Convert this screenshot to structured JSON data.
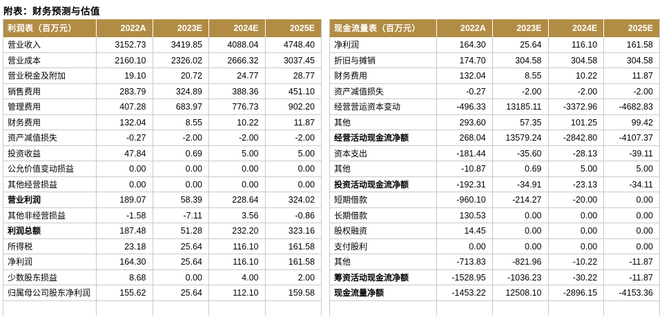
{
  "page_title": "附表：财务预测与估值",
  "colors": {
    "header_bg": "#B18C44",
    "header_text": "#FFFFFF",
    "grid": "#C8C8C8"
  },
  "columns": [
    "2022A",
    "2023E",
    "2024E",
    "2025E"
  ],
  "income_statement": {
    "title": "利润表（百万元）",
    "rows": [
      {
        "label": "营业收入",
        "bold": false,
        "values": [
          "3152.73",
          "3419.85",
          "4088.04",
          "4748.40"
        ]
      },
      {
        "label": "营业成本",
        "bold": false,
        "values": [
          "2160.10",
          "2326.02",
          "2666.32",
          "3037.45"
        ]
      },
      {
        "label": "营业税金及附加",
        "bold": false,
        "values": [
          "19.10",
          "20.72",
          "24.77",
          "28.77"
        ]
      },
      {
        "label": "销售费用",
        "bold": false,
        "values": [
          "283.79",
          "324.89",
          "388.36",
          "451.10"
        ]
      },
      {
        "label": "管理费用",
        "bold": false,
        "values": [
          "407.28",
          "683.97",
          "776.73",
          "902.20"
        ]
      },
      {
        "label": "财务费用",
        "bold": false,
        "values": [
          "132.04",
          "8.55",
          "10.22",
          "11.87"
        ]
      },
      {
        "label": "资产减值损失",
        "bold": false,
        "values": [
          "-0.27",
          "-2.00",
          "-2.00",
          "-2.00"
        ]
      },
      {
        "label": "投资收益",
        "bold": false,
        "values": [
          "47.84",
          "0.69",
          "5.00",
          "5.00"
        ]
      },
      {
        "label": "公允价值变动损益",
        "bold": false,
        "values": [
          "0.00",
          "0.00",
          "0.00",
          "0.00"
        ]
      },
      {
        "label": "其他经营损益",
        "bold": false,
        "values": [
          "0.00",
          "0.00",
          "0.00",
          "0.00"
        ]
      },
      {
        "label": "营业利润",
        "bold": true,
        "values": [
          "189.07",
          "58.39",
          "228.64",
          "324.02"
        ]
      },
      {
        "label": "其他非经营损益",
        "bold": false,
        "values": [
          "-1.58",
          "-7.11",
          "3.56",
          "-0.86"
        ]
      },
      {
        "label": "利润总额",
        "bold": true,
        "values": [
          "187.48",
          "51.28",
          "232.20",
          "323.16"
        ]
      },
      {
        "label": "所得税",
        "bold": false,
        "values": [
          "23.18",
          "25.64",
          "116.10",
          "161.58"
        ]
      },
      {
        "label": "净利润",
        "bold": false,
        "values": [
          "164.30",
          "25.64",
          "116.10",
          "161.58"
        ]
      },
      {
        "label": "少数股东损益",
        "bold": false,
        "values": [
          "8.68",
          "0.00",
          "4.00",
          "2.00"
        ]
      },
      {
        "label": "归属母公司股东净利润",
        "bold": false,
        "values": [
          "155.62",
          "25.64",
          "112.10",
          "159.58"
        ]
      }
    ]
  },
  "cash_flow_statement": {
    "title": "现金流量表（百万元）",
    "rows": [
      {
        "label": "净利润",
        "bold": false,
        "values": [
          "164.30",
          "25.64",
          "116.10",
          "161.58"
        ]
      },
      {
        "label": "折旧与摊销",
        "bold": false,
        "values": [
          "174.70",
          "304.58",
          "304.58",
          "304.58"
        ]
      },
      {
        "label": "财务费用",
        "bold": false,
        "values": [
          "132.04",
          "8.55",
          "10.22",
          "11.87"
        ]
      },
      {
        "label": "资产减值损失",
        "bold": false,
        "values": [
          "-0.27",
          "-2.00",
          "-2.00",
          "-2.00"
        ]
      },
      {
        "label": "经营营运资本变动",
        "bold": false,
        "values": [
          "-496.33",
          "13185.11",
          "-3372.96",
          "-4682.83"
        ]
      },
      {
        "label": "其他",
        "bold": false,
        "values": [
          "293.60",
          "57.35",
          "101.25",
          "99.42"
        ]
      },
      {
        "label": "经营活动现金流净额",
        "bold": true,
        "values": [
          "268.04",
          "13579.24",
          "-2842.80",
          "-4107.37"
        ]
      },
      {
        "label": "资本支出",
        "bold": false,
        "values": [
          "-181.44",
          "-35.60",
          "-28.13",
          "-39.11"
        ]
      },
      {
        "label": "其他",
        "bold": false,
        "values": [
          "-10.87",
          "0.69",
          "5.00",
          "5.00"
        ]
      },
      {
        "label": "投资活动现金流净额",
        "bold": true,
        "values": [
          "-192.31",
          "-34.91",
          "-23.13",
          "-34.11"
        ]
      },
      {
        "label": "短期借款",
        "bold": false,
        "values": [
          "-960.10",
          "-214.27",
          "-20.00",
          "0.00"
        ]
      },
      {
        "label": "长期借款",
        "bold": false,
        "values": [
          "130.53",
          "0.00",
          "0.00",
          "0.00"
        ]
      },
      {
        "label": "股权融资",
        "bold": false,
        "values": [
          "14.45",
          "0.00",
          "0.00",
          "0.00"
        ]
      },
      {
        "label": "支付股利",
        "bold": false,
        "values": [
          "0.00",
          "0.00",
          "0.00",
          "0.00"
        ]
      },
      {
        "label": "其他",
        "bold": false,
        "values": [
          "-713.83",
          "-821.96",
          "-10.22",
          "-11.87"
        ]
      },
      {
        "label": "筹资活动现金流净额",
        "bold": true,
        "values": [
          "-1528.95",
          "-1036.23",
          "-30.22",
          "-11.87"
        ]
      },
      {
        "label": "现金流量净额",
        "bold": true,
        "values": [
          "-1453.22",
          "12508.10",
          "-2896.15",
          "-4153.36"
        ]
      }
    ]
  }
}
